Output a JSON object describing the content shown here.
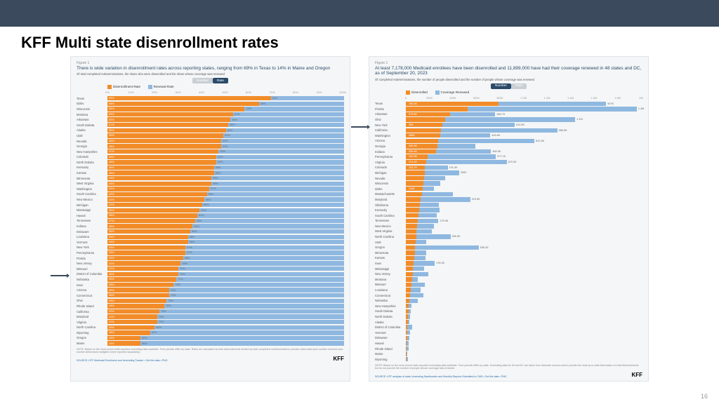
{
  "page": {
    "title": "KFF Multi state disenrollment rates",
    "number": "16"
  },
  "colors": {
    "orange": "#f28c28",
    "blue": "#8fb8e0",
    "navy": "#2a4a6a",
    "topbar": "#3b4a5c"
  },
  "chartA": {
    "type": "stacked-bar-horizontal",
    "figLabel": "Figure 1",
    "title": "There is wide variation in disenrollment rates across reporting states, ranging from 69% in Texas to 14% in Maine and Oregon",
    "subtitle": "Of total completed redeterminations, the share who were disenrolled and the share whose coverage was renewed",
    "toggle": {
      "off": "Number",
      "on": "Rate"
    },
    "legend": {
      "a": "Disenrollment Rate",
      "b": "Renewal Rate"
    },
    "axis": {
      "ticks": [
        0,
        10,
        20,
        30,
        40,
        50,
        60,
        70,
        80,
        90,
        100
      ],
      "max": 100
    },
    "rows": [
      {
        "s": "Texas",
        "a": 69,
        "b": 31
      },
      {
        "s": "Idaho",
        "a": 64,
        "b": 36
      },
      {
        "s": "Wisconsin",
        "a": 58,
        "b": 42
      },
      {
        "s": "Montana",
        "a": 53,
        "b": 47
      },
      {
        "s": "Arkansas",
        "a": 52,
        "b": 48
      },
      {
        "s": "South Dakota",
        "a": 51,
        "b": 49
      },
      {
        "s": "Alaska",
        "a": 50,
        "b": 50
      },
      {
        "s": "Utah",
        "a": 49,
        "b": 51
      },
      {
        "s": "Nevada",
        "a": 48,
        "b": 52
      },
      {
        "s": "Georgia",
        "a": 48,
        "b": 52
      },
      {
        "s": "New Hampshire",
        "a": 47,
        "b": 53
      },
      {
        "s": "Colorado",
        "a": 46,
        "b": 54
      },
      {
        "s": "North Dakota",
        "a": 46,
        "b": 54
      },
      {
        "s": "Kentucky",
        "a": 45,
        "b": 55
      },
      {
        "s": "Kansas",
        "a": 45,
        "b": 55
      },
      {
        "s": "Minnesota",
        "a": 44,
        "b": 56
      },
      {
        "s": "West Virginia",
        "a": 44,
        "b": 56
      },
      {
        "s": "Washington",
        "a": 43,
        "b": 57
      },
      {
        "s": "South Carolina",
        "a": 42,
        "b": 58
      },
      {
        "s": "New Mexico",
        "a": 41,
        "b": 59
      },
      {
        "s": "Michigan",
        "a": 40,
        "b": 60
      },
      {
        "s": "Mississippi",
        "a": 39,
        "b": 61
      },
      {
        "s": "Hawaii",
        "a": 38,
        "b": 62
      },
      {
        "s": "Tennessee",
        "a": 37,
        "b": 63
      },
      {
        "s": "Indiana",
        "a": 36,
        "b": 64
      },
      {
        "s": "Delaware",
        "a": 35,
        "b": 65
      },
      {
        "s": "Louisiana",
        "a": 34,
        "b": 66
      },
      {
        "s": "Vermont",
        "a": 34,
        "b": 66
      },
      {
        "s": "New York",
        "a": 33,
        "b": 67
      },
      {
        "s": "Pennsylvania",
        "a": 33,
        "b": 67
      },
      {
        "s": "Florida",
        "a": 32,
        "b": 68
      },
      {
        "s": "New Jersey",
        "a": 31,
        "b": 69
      },
      {
        "s": "Missouri",
        "a": 30,
        "b": 70
      },
      {
        "s": "District of Columbia",
        "a": 30,
        "b": 70
      },
      {
        "s": "Nebraska",
        "a": 29,
        "b": 71
      },
      {
        "s": "Iowa",
        "a": 28,
        "b": 72
      },
      {
        "s": "Arizona",
        "a": 26,
        "b": 74
      },
      {
        "s": "Connecticut",
        "a": 26,
        "b": 74
      },
      {
        "s": "Ohio",
        "a": 25,
        "b": 75
      },
      {
        "s": "Rhode Island",
        "a": 24,
        "b": 76
      },
      {
        "s": "California",
        "a": 22,
        "b": 78
      },
      {
        "s": "Maryland",
        "a": 21,
        "b": 79
      },
      {
        "s": "Virginia",
        "a": 21,
        "b": 79
      },
      {
        "s": "North Carolina",
        "a": 20,
        "b": 80
      },
      {
        "s": "Wyoming",
        "a": 18,
        "b": 82
      },
      {
        "s": "Oregon",
        "a": 14,
        "b": 86
      },
      {
        "s": "Maine",
        "a": 14,
        "b": 86
      }
    ],
    "note": "NOTE: Based on the most recent state-reported unwinding data available. Time periods differ by state. Rates are calculated as total disenrollments divided by total completed redeterminations (number disenrolled plus number renewed plus number determined ineligible where reported separately).",
    "source": "SOURCE: KFF Medicaid Enrollment and Unwinding Tracker • Get the data • PNG"
  },
  "chartB": {
    "type": "grouped-bar-horizontal",
    "figLabel": "Figure 1",
    "title": "At least 7,178,000 Medicaid enrollees have been disenrolled and 11,899,000 have had their coverage renewed in 48 states and DC, as of September 20, 2023",
    "subtitle": "Of completed redeterminations, the number of people disenrolled and the number of people whose coverage was renewed",
    "toggle": {
      "on": "Number",
      "off": "Rate"
    },
    "legend": {
      "a": "Disenrolled",
      "b": "Coverage Renewed"
    },
    "axis": {
      "labels": [
        "0",
        "200K",
        "400K",
        "600K",
        "800K",
        "1.0M",
        "1.2M",
        "1.4M",
        "1.6M",
        "1.8M",
        "2M"
      ],
      "max": 2000
    },
    "rows": [
      {
        "s": "Texas",
        "a": 786,
        "al": "786.3K",
        "b": 907,
        "bl": "907K"
      },
      {
        "s": "Florida",
        "a": 520,
        "al": "",
        "b": 1432,
        "bl": "1.4M"
      },
      {
        "s": "Arkansas",
        "a": 373,
        "al": "373.6K",
        "b": 383,
        "bl": "383.7K"
      },
      {
        "s": "Ohio",
        "a": 330,
        "al": "",
        "b": 1102,
        "bl": "1.1M"
      },
      {
        "s": "New York",
        "a": 306,
        "al": "306.",
        "b": 614,
        "bl": "614.5K"
      },
      {
        "s": "California",
        "a": 295,
        "al": "",
        "b": 985,
        "bl": "985.5K"
      },
      {
        "s": "Washington",
        "a": 288,
        "al": "288K",
        "b": 426,
        "bl": "426.6K"
      },
      {
        "s": "Arizona",
        "a": 275,
        "al": "",
        "b": 812,
        "bl": "812.6K"
      },
      {
        "s": "Georgia",
        "a": 265,
        "al": "265.3K",
        "b": 320,
        "bl": ""
      },
      {
        "s": "Indiana",
        "a": 255,
        "al": "255.4K",
        "b": 465,
        "bl": "465.5K"
      },
      {
        "s": "Pennsylvania",
        "a": 184,
        "al": "184.5K",
        "b": 577,
        "bl": "577.1K"
      },
      {
        "s": "Virginia",
        "a": 174,
        "al": "174.4K",
        "b": 679,
        "bl": "679.3K"
      },
      {
        "s": "Colorado",
        "a": 163,
        "al": "163.7K",
        "b": 191,
        "bl": "191.3K"
      },
      {
        "s": "Michigan",
        "a": 160,
        "al": "",
        "b": 290,
        "bl": "290K"
      },
      {
        "s": "Nevada",
        "a": 155,
        "al": "",
        "b": 180,
        "bl": ""
      },
      {
        "s": "Wisconsin",
        "a": 148,
        "al": "",
        "b": 140,
        "bl": ""
      },
      {
        "s": "Idaho",
        "a": 143,
        "al": "143K",
        "b": 95,
        "bl": ""
      },
      {
        "s": "Massachusetts",
        "a": 135,
        "al": "",
        "b": 260,
        "bl": ""
      },
      {
        "s": "Maryland",
        "a": 125,
        "al": "",
        "b": 419,
        "bl": "419.9K"
      },
      {
        "s": "Oklahoma",
        "a": 120,
        "al": "",
        "b": 160,
        "bl": ""
      },
      {
        "s": "Kentucky",
        "a": 115,
        "al": "",
        "b": 170,
        "bl": ""
      },
      {
        "s": "South Carolina",
        "a": 108,
        "al": "",
        "b": 155,
        "bl": ""
      },
      {
        "s": "Tennessee",
        "a": 100,
        "al": "",
        "b": 175,
        "bl": "175.9K"
      },
      {
        "s": "New Mexico",
        "a": 95,
        "al": "",
        "b": 140,
        "bl": ""
      },
      {
        "s": "West Virginia",
        "a": 90,
        "al": "",
        "b": 130,
        "bl": ""
      },
      {
        "s": "North Carolina",
        "a": 88,
        "al": "",
        "b": 289,
        "bl": "289.3K"
      },
      {
        "s": "Utah",
        "a": 85,
        "al": "",
        "b": 90,
        "bl": ""
      },
      {
        "s": "Oregon",
        "a": 80,
        "al": "",
        "b": 536,
        "bl": "536.2K"
      },
      {
        "s": "Minnesota",
        "a": 78,
        "al": "",
        "b": 95,
        "bl": ""
      },
      {
        "s": "Kansas",
        "a": 72,
        "al": "",
        "b": 92,
        "bl": ""
      },
      {
        "s": "Iowa",
        "a": 68,
        "al": "",
        "b": 176,
        "bl": "176.3K"
      },
      {
        "s": "Mississippi",
        "a": 62,
        "al": "",
        "b": 95,
        "bl": ""
      },
      {
        "s": "New Jersey",
        "a": 58,
        "al": "",
        "b": 130,
        "bl": ""
      },
      {
        "s": "Montana",
        "a": 52,
        "al": "",
        "b": 50,
        "bl": ""
      },
      {
        "s": "Missouri",
        "a": 48,
        "al": "",
        "b": 115,
        "bl": ""
      },
      {
        "s": "Louisiana",
        "a": 42,
        "al": "",
        "b": 82,
        "bl": ""
      },
      {
        "s": "Connecticut",
        "a": 38,
        "al": "",
        "b": 110,
        "bl": ""
      },
      {
        "s": "Nebraska",
        "a": 30,
        "al": "",
        "b": 72,
        "bl": ""
      },
      {
        "s": "New Hampshire",
        "a": 24,
        "al": "",
        "b": 26,
        "bl": ""
      },
      {
        "s": "South Dakota",
        "a": 22,
        "al": "",
        "b": 20,
        "bl": ""
      },
      {
        "s": "North Dakota",
        "a": 18,
        "al": "",
        "b": 20,
        "bl": ""
      },
      {
        "s": "Alaska",
        "a": 16,
        "al": "",
        "b": 16,
        "bl": ""
      },
      {
        "s": "District of Columbia",
        "a": 14,
        "al": "",
        "b": 38,
        "bl": ""
      },
      {
        "s": "Vermont",
        "a": 12,
        "al": "",
        "b": 24,
        "bl": ""
      },
      {
        "s": "Delaware",
        "a": 10,
        "al": "",
        "b": 20,
        "bl": ""
      },
      {
        "s": "Hawaii",
        "a": 8,
        "al": "",
        "b": 14,
        "bl": ""
      },
      {
        "s": "Rhode Island",
        "a": 6,
        "al": "",
        "b": 20,
        "bl": ""
      },
      {
        "s": "Maine",
        "a": 4,
        "al": "",
        "b": 8,
        "bl": ""
      },
      {
        "s": "Wyoming",
        "a": 3,
        "al": "",
        "b": 12,
        "bl": ""
      }
    ],
    "note": "NOTE: Based on the most recent state-reported unwinding data available. Time periods differ by state. Unwinding data for MI and DC are taken from alternate sources which provide the most up-to-date information on total disenrollments but do not provide the number of people whose coverage was renewed.",
    "source": "SOURCE: KFF analysis of state Unwinding Dashboards and Monthly Reports Submitted to CMS • Get the data • PNG"
  }
}
